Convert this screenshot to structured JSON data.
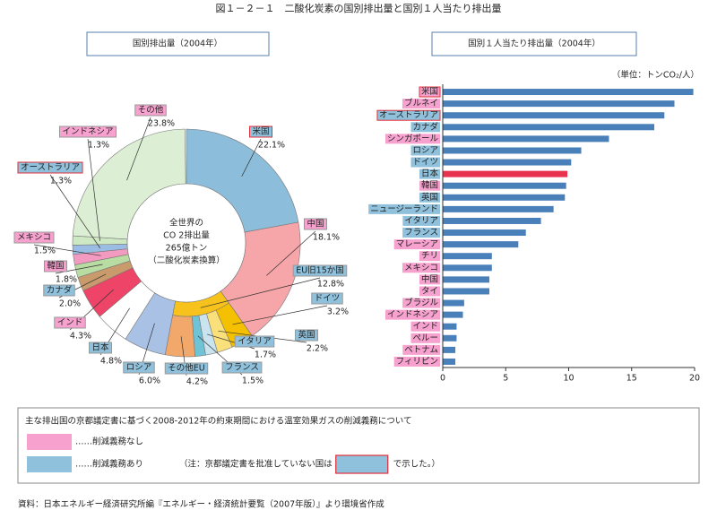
{
  "figure_title": "図１－２－１　二酸化炭素の国別排出量と国別１人当たり排出量",
  "chart_data": [
    {
      "type": "donut",
      "title": "国別排出量（2004年）",
      "center_text": [
        "全世界の",
        "CO 2排出量",
        "265億トン",
        "（二酸化炭素換算）"
      ],
      "slices": [
        {
          "name": "米国",
          "value": 22.1,
          "value_label": "22.1%",
          "color": "#8cbddb",
          "label_color": "#8fc1dc",
          "label_border": "#e0303a"
        },
        {
          "name": "中国",
          "value": 18.1,
          "value_label": "18.1%",
          "color": "#f6a5a8",
          "label_color": "#f7a1cf",
          "label_border": "#999999"
        },
        {
          "name": "EU旧15か国",
          "value": 12.8,
          "value_label": "12.8%",
          "color": "#f7c21b",
          "label_color": "#8fc1dc",
          "label_border": "#999999",
          "children": [
            {
              "name": "ドイツ",
              "value": 3.2,
              "value_label": "3.2%",
              "color": "#f5c000",
              "label_color": "#8fc1dc",
              "label_border": "#999999"
            },
            {
              "name": "英国",
              "value": 2.2,
              "value_label": "2.2%",
              "color": "#f9e07a",
              "label_color": "#8fc1dc",
              "label_border": "#999999"
            },
            {
              "name": "イタリア",
              "value": 1.7,
              "value_label": "1.7%",
              "color": "#c9e3ef",
              "label_color": "#8fc1dc",
              "label_border": "#999999"
            },
            {
              "name": "フランス",
              "value": 1.5,
              "value_label": "1.5%",
              "color": "#6ec4d6",
              "label_color": "#8fc1dc",
              "label_border": "#999999"
            },
            {
              "name": "その他EU",
              "value": 4.2,
              "value_label": "4.2%",
              "color": "#f3a86b",
              "label_color": "#8fc1dc",
              "label_border": "#999999"
            }
          ]
        },
        {
          "name": "ロシア",
          "value": 6.0,
          "value_label": "6.0%",
          "color": "#a9c1e5",
          "label_color": "#8fc1dc",
          "label_border": "#999999"
        },
        {
          "name": "日本",
          "value": 4.8,
          "value_label": "4.8%",
          "color": "#ffffff",
          "label_color": "#8fc1dc",
          "label_border": "#999999"
        },
        {
          "name": "インド",
          "value": 4.3,
          "value_label": "4.3%",
          "color": "#ee4467",
          "label_color": "#f7a1cf",
          "label_border": "#999999"
        },
        {
          "name": "カナダ",
          "value": 2.0,
          "value_label": "2.0%",
          "color": "#c99a6c",
          "label_color": "#8fc1dc",
          "label_border": "#999999"
        },
        {
          "name": "韓国",
          "value": 1.8,
          "value_label": "1.8%",
          "color": "#b9dca3",
          "label_color": "#f7a1cf",
          "label_border": "#999999"
        },
        {
          "name": "メキシコ",
          "value": 1.5,
          "value_label": "1.5%",
          "color": "#f29ac0",
          "label_color": "#f7a1cf",
          "label_border": "#999999"
        },
        {
          "name": "オーストラリア",
          "value": 1.3,
          "value_label": "1.3%",
          "color": "#9bbde3",
          "label_color": "#8fc1dc",
          "label_border": "#e0303a"
        },
        {
          "name": "インドネシア",
          "value": 1.3,
          "value_label": "1.3%",
          "color": "#cfe8c4",
          "label_color": "#f7a1cf",
          "label_border": "#999999"
        },
        {
          "name": "その他",
          "value": 23.8,
          "value_label": "23.8%",
          "color": "#dceed3",
          "label_color": "#f7a1cf",
          "label_border": "#999999"
        }
      ]
    },
    {
      "type": "bar",
      "orientation": "horizontal",
      "title": "国別１人当たり排出量（2004年）",
      "unit": "（単位：トンCO₂/人）",
      "categories": [
        "米国",
        "ブルネイ",
        "オーストラリア",
        "カナダ",
        "シンガポール",
        "ロシア",
        "ドイツ",
        "日本",
        "韓国",
        "英国",
        "ニュージーランド",
        "イタリア",
        "フランス",
        "マレーシア",
        "チリ",
        "メキシコ",
        "中国",
        "タイ",
        "ブラジル",
        "インドネシア",
        "インド",
        "ペルー",
        "ベトナム",
        "フィリピン"
      ],
      "values": [
        19.9,
        18.4,
        17.6,
        16.8,
        13.2,
        11.0,
        10.2,
        9.9,
        9.8,
        9.7,
        8.8,
        7.8,
        6.6,
        6.0,
        3.9,
        3.9,
        3.7,
        3.7,
        1.7,
        1.6,
        1.1,
        1.1,
        1.0,
        1.0
      ],
      "colors": [
        "#4a80b9",
        "#4a80b9",
        "#4a80b9",
        "#4a80b9",
        "#4a80b9",
        "#4a80b9",
        "#4a80b9",
        "#e8334f",
        "#4a80b9",
        "#4a80b9",
        "#4a80b9",
        "#4a80b9",
        "#4a80b9",
        "#4a80b9",
        "#4a80b9",
        "#4a80b9",
        "#4a80b9",
        "#4a80b9",
        "#4a80b9",
        "#4a80b9",
        "#4a80b9",
        "#4a80b9",
        "#4a80b9",
        "#4a80b9"
      ],
      "label_colors": [
        "#f7a1cf",
        "#f7a1cf",
        "#8fc1dc",
        "#8fc1dc",
        "#f7a1cf",
        "#8fc1dc",
        "#8fc1dc",
        "#8fc1dc",
        "#f7a1cf",
        "#8fc1dc",
        "#8fc1dc",
        "#8fc1dc",
        "#8fc1dc",
        "#f7a1cf",
        "#f7a1cf",
        "#f7a1cf",
        "#f7a1cf",
        "#f7a1cf",
        "#f7a1cf",
        "#f7a1cf",
        "#f7a1cf",
        "#f7a1cf",
        "#f7a1cf",
        "#f7a1cf"
      ],
      "label_borders": [
        "#e0303a",
        null,
        "#e0303a",
        null,
        null,
        null,
        null,
        null,
        null,
        null,
        null,
        null,
        null,
        null,
        null,
        null,
        null,
        null,
        null,
        null,
        null,
        null,
        null,
        null
      ],
      "xlim": [
        0,
        20
      ],
      "xticks": [
        0,
        5,
        10,
        15,
        20
      ]
    }
  ],
  "legend": {
    "title": "主な排出国の京都議定書に基づく2008-2012年の約束期間における温室効果ガスの削減義務について",
    "items": [
      {
        "label": "……削減義務なし",
        "color": "#f7a1cf"
      },
      {
        "label": "……削減義務あり",
        "color": "#8fc1dc"
      }
    ],
    "note_before": "（注：京都議定書を批准していない国は",
    "note_border": "#e0303a",
    "note_after": "で示した。）"
  },
  "source": "資料：日本エネルギー経済研究所編『エネルギー・経済統計要覧（2007年版）』より環境省作成"
}
